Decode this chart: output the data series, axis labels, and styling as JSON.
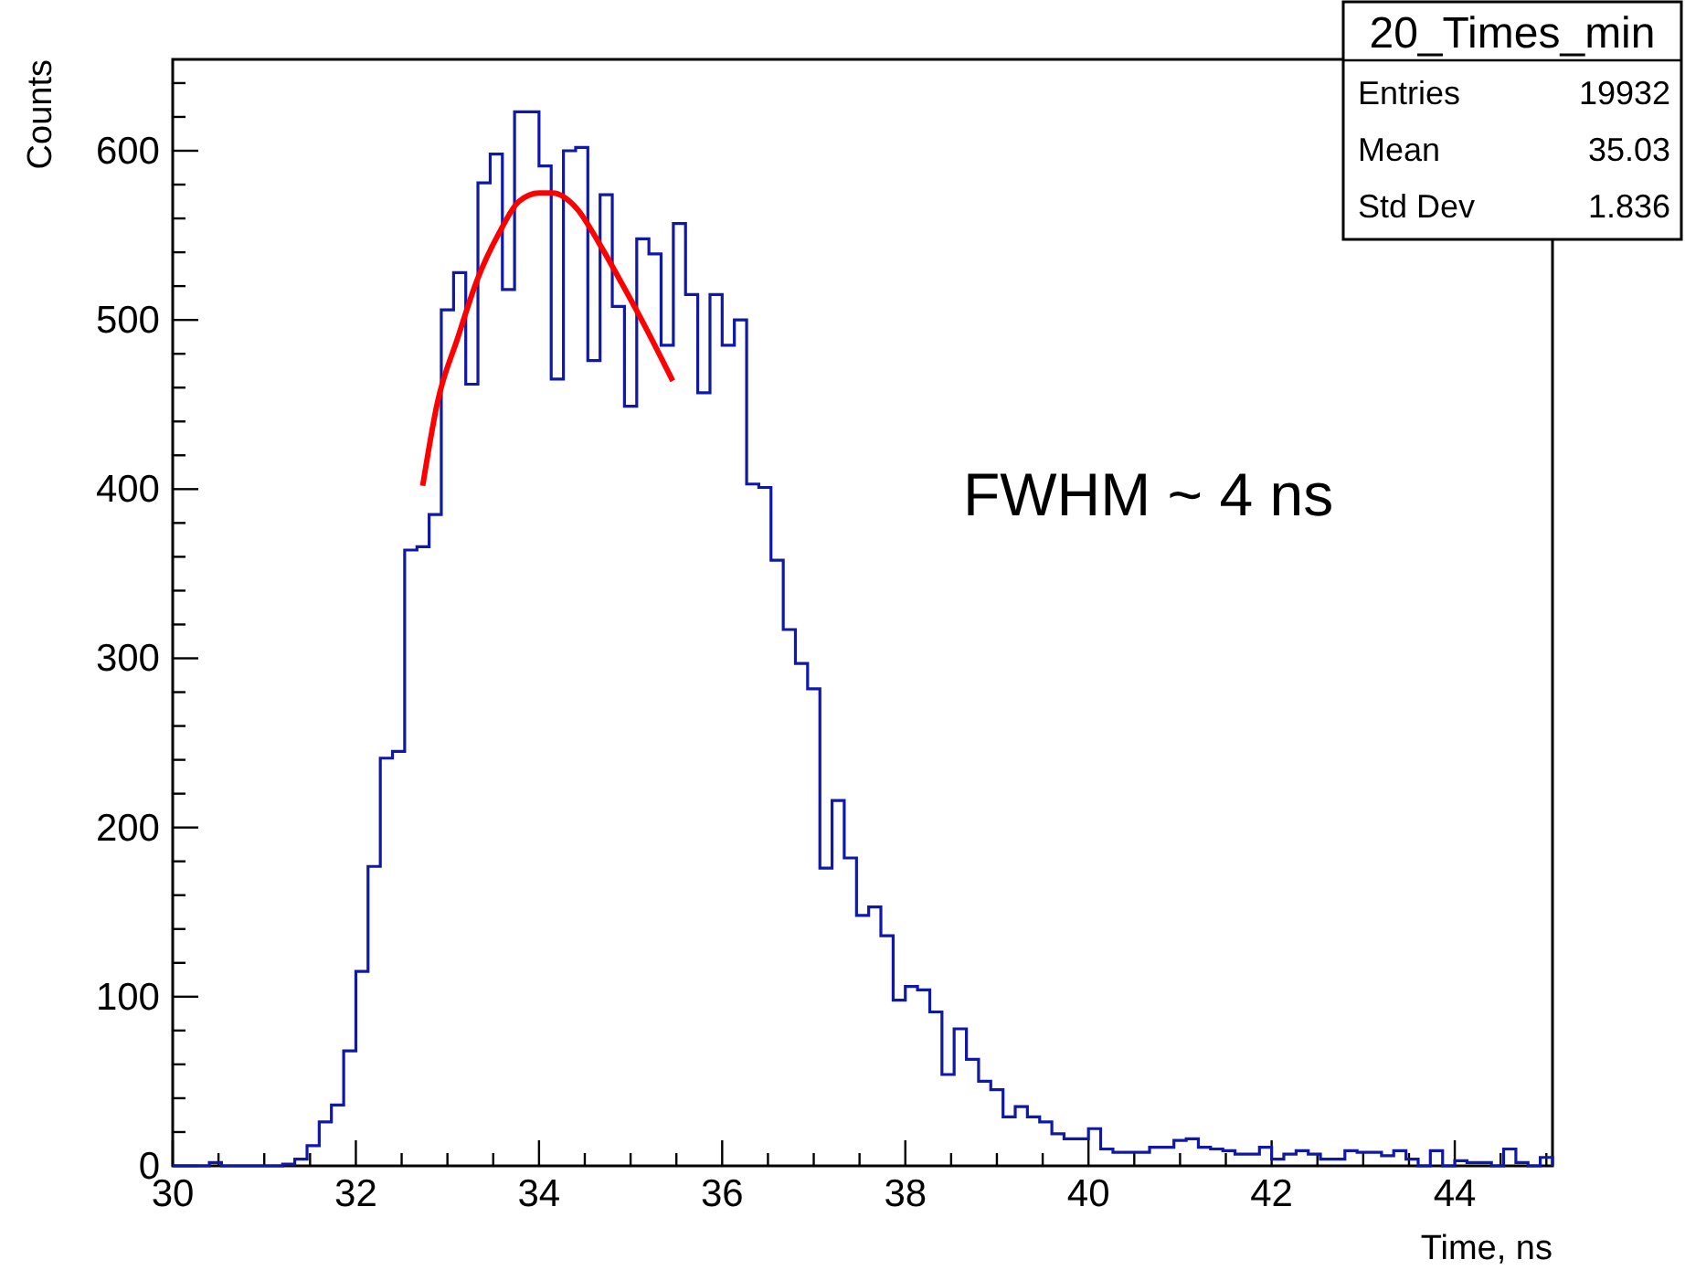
{
  "chart_data": {
    "type": "histogram",
    "title": "20_Times_min",
    "xlabel": "Time, ns",
    "ylabel": "Counts",
    "annotations": [
      "FWHM ~ 4 ns",
      "Entries 19932",
      "Mean 35.03",
      "Std Dev 1.836"
    ],
    "bins": [
      30,
      30.133,
      30.267,
      30.4,
      30.533,
      30.667,
      30.8,
      30.933,
      31.067,
      31.2,
      31.333,
      31.467,
      31.6,
      31.733,
      31.867,
      32,
      32.133,
      32.267,
      32.4,
      32.533,
      32.667,
      32.8,
      32.933,
      33.067,
      33.2,
      33.333,
      33.467,
      33.6,
      33.733,
      33.867,
      34,
      34.133,
      34.267,
      34.4,
      34.533,
      34.667,
      34.8,
      34.933,
      35.067,
      35.2,
      35.333,
      35.467,
      35.6,
      35.733,
      35.867,
      36,
      36.133,
      36.267,
      36.4,
      36.533,
      36.667,
      36.8,
      36.933,
      37.067,
      37.2,
      37.333,
      37.467,
      37.6,
      37.733,
      37.867,
      38,
      38.133,
      38.267,
      38.4,
      38.533,
      38.667,
      38.8,
      38.933,
      39.067,
      39.2,
      39.333,
      39.467,
      39.6,
      39.733,
      39.867,
      40,
      40.133,
      40.267,
      40.4,
      40.533,
      40.667,
      40.8,
      40.933,
      41.067,
      41.2,
      41.333,
      41.467,
      41.6,
      41.733,
      41.867,
      42,
      42.133,
      42.267,
      42.4,
      42.533,
      42.667,
      42.8,
      42.933,
      43.067,
      43.2,
      43.333,
      43.467,
      43.6,
      43.733,
      43.867,
      44,
      44.133,
      44.267,
      44.4,
      44.533,
      44.667,
      44.8,
      44.933,
      45.067
    ],
    "series": [
      {
        "color": "#1018a8",
        "values": [
          0,
          0,
          0,
          2,
          0,
          0,
          0,
          0,
          0,
          1,
          4,
          12,
          26,
          36,
          68,
          115,
          177,
          241,
          245,
          364,
          366,
          385,
          506,
          528,
          462,
          581,
          598,
          518,
          623,
          623,
          591,
          465,
          600,
          602,
          476,
          574,
          508,
          449,
          548,
          539,
          485,
          557,
          515,
          457,
          515,
          485,
          500,
          403,
          401,
          358,
          317,
          297,
          282,
          176,
          216,
          182,
          148,
          153,
          136,
          98,
          106,
          104,
          91,
          54,
          81,
          63,
          50,
          45,
          29,
          35,
          29,
          26,
          19,
          16,
          16,
          22,
          10,
          8,
          8,
          8,
          11,
          11,
          15,
          16,
          11,
          10,
          9,
          7,
          7,
          11,
          4,
          7,
          9,
          7,
          4,
          4,
          9,
          8,
          8,
          6,
          9,
          4,
          0,
          9,
          0,
          3,
          2,
          2,
          0,
          10,
          2,
          0,
          5
        ]
      },
      {
        "type": "line",
        "color": "#ff0000",
        "x": [
          32.73,
          32.89,
          33.11,
          33.32,
          33.57,
          33.78,
          34.0,
          34.15,
          34.41,
          34.66,
          34.91,
          35.16,
          35.46
        ],
        "values": [
          402,
          451,
          489,
          523,
          552,
          570,
          575,
          575,
          566,
          545,
          521,
          496,
          464
        ]
      }
    ],
    "xlim": [
      30,
      45.067
    ],
    "xticks": [
      30,
      {
        "value": 30.5,
        "label": null
      },
      32,
      {
        "value": 31,
        "label": null
      },
      {
        "value": 31.5,
        "label": null
      },
      {
        "value": 32.5,
        "label": null
      },
      {
        "value": 33,
        "label": null
      },
      {
        "value": 33.5,
        "label": null
      },
      34,
      {
        "value": 34.5,
        "label": null
      },
      {
        "value": 35,
        "label": null
      },
      {
        "value": 35.5,
        "label": null
      },
      36,
      {
        "value": 36.5,
        "label": null
      },
      {
        "value": 37,
        "label": null
      },
      {
        "value": 37.5,
        "label": null
      },
      38,
      {
        "value": 38.5,
        "label": null
      },
      {
        "value": 39,
        "label": null
      },
      {
        "value": 39.5,
        "label": null
      },
      40,
      {
        "value": 40.5,
        "label": null
      },
      {
        "value": 41,
        "label": null
      },
      {
        "value": 41.5,
        "label": null
      },
      42,
      {
        "value": 42.5,
        "label": null
      },
      {
        "value": 43,
        "label": null
      },
      {
        "value": 43.5,
        "label": null
      },
      44,
      {
        "value": 44.5,
        "label": null
      },
      {
        "value": 45,
        "label": null
      }
    ],
    "ylim": [
      0,
      654
    ],
    "yticks": [
      0,
      {
        "value": 20,
        "label": null
      },
      {
        "value": 40,
        "label": null
      },
      {
        "value": 60,
        "label": null
      },
      {
        "value": 80,
        "label": null
      },
      100,
      {
        "value": 120,
        "label": null
      },
      {
        "value": 140,
        "label": null
      },
      {
        "value": 160,
        "label": null
      },
      {
        "value": 180,
        "label": null
      },
      200,
      {
        "value": 220,
        "label": null
      },
      {
        "value": 240,
        "label": null
      },
      {
        "value": 260,
        "label": null
      },
      {
        "value": 280,
        "label": null
      },
      300,
      {
        "value": 320,
        "label": null
      },
      {
        "value": 340,
        "label": null
      },
      {
        "value": 360,
        "label": null
      },
      {
        "value": 380,
        "label": null
      },
      400,
      {
        "value": 420,
        "label": null
      },
      {
        "value": 440,
        "label": null
      },
      {
        "value": 460,
        "label": null
      },
      {
        "value": 480,
        "label": null
      },
      500,
      {
        "value": 520,
        "label": null
      },
      {
        "value": 540,
        "label": null
      },
      {
        "value": 560,
        "label": null
      },
      {
        "value": 580,
        "label": null
      },
      600,
      {
        "value": 620,
        "label": null
      },
      {
        "value": 640,
        "label": null
      }
    ],
    "grid": false
  }
}
